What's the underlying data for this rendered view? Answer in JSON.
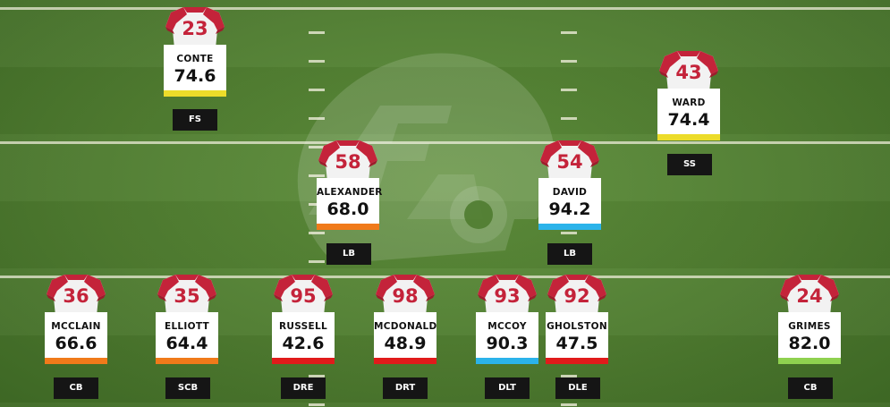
{
  "players": [
    {
      "number": "23",
      "name": "CONTE",
      "grade": "74.6",
      "position": "FS",
      "bar_color": "#ecdc2a"
    },
    {
      "number": "43",
      "name": "WARD",
      "grade": "74.4",
      "position": "SS",
      "bar_color": "#ecdc2a"
    },
    {
      "number": "58",
      "name": "ALEXANDER",
      "grade": "68.0",
      "position": "LB",
      "bar_color": "#f07a1a"
    },
    {
      "number": "54",
      "name": "DAVID",
      "grade": "94.2",
      "position": "LB",
      "bar_color": "#2bb3ea"
    },
    {
      "number": "36",
      "name": "MCCLAIN",
      "grade": "66.6",
      "position": "CB",
      "bar_color": "#f07a1a"
    },
    {
      "number": "35",
      "name": "ELLIOTT",
      "grade": "64.4",
      "position": "SCB",
      "bar_color": "#f07a1a"
    },
    {
      "number": "95",
      "name": "RUSSELL",
      "grade": "42.6",
      "position": "DRE",
      "bar_color": "#e01b1b"
    },
    {
      "number": "98",
      "name": "MCDONALD",
      "grade": "48.9",
      "position": "DRT",
      "bar_color": "#e01b1b"
    },
    {
      "number": "93",
      "name": "MCCOY",
      "grade": "90.3",
      "position": "DLT",
      "bar_color": "#2bb3ea"
    },
    {
      "number": "92",
      "name": "GHOLSTON",
      "grade": "47.5",
      "position": "DLE",
      "bar_color": "#e01b1b"
    },
    {
      "number": "24",
      "name": "GRIMES",
      "grade": "82.0",
      "position": "CB",
      "bar_color": "#8fd14f"
    }
  ],
  "colors": {
    "jersey_red": "#c4233a",
    "jersey_white": "#f2f2f2",
    "field_green": "#4f7c30"
  },
  "icons": {
    "watermark": "pff-logo"
  }
}
